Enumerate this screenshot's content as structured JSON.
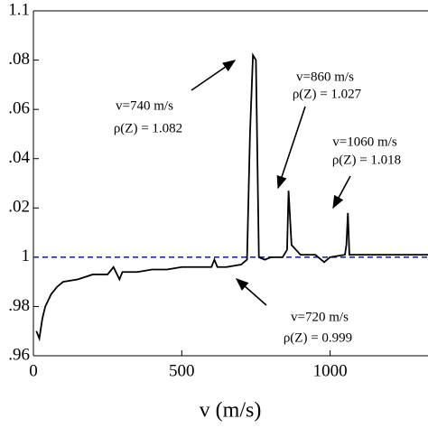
{
  "chart_data": {
    "type": "line",
    "xlabel": "v (m/s)",
    "x": [
      10,
      20,
      30,
      40,
      60,
      80,
      100,
      150,
      200,
      250,
      270,
      290,
      300,
      350,
      400,
      450,
      500,
      550,
      600,
      610,
      620,
      650,
      700,
      720,
      730,
      740,
      750,
      760,
      780,
      800,
      840,
      855,
      860,
      870,
      900,
      950,
      980,
      1000,
      1050,
      1055,
      1060,
      1065,
      1100,
      1200,
      1330
    ],
    "series": [
      {
        "color": "#000000",
        "values": [
          0.97,
          0.967,
          0.975,
          0.98,
          0.985,
          0.988,
          0.99,
          0.991,
          0.993,
          0.993,
          0.996,
          0.991,
          0.994,
          0.994,
          0.995,
          0.995,
          0.996,
          0.996,
          0.996,
          0.999,
          0.996,
          0.996,
          0.997,
          0.999,
          1.05,
          1.082,
          1.08,
          1.0,
          0.999,
          1.0,
          1.0,
          1.003,
          1.027,
          1.005,
          1.001,
          1.001,
          0.998,
          1.0,
          1.001,
          1.005,
          1.018,
          1.001,
          1.001,
          1.001,
          1.001
        ]
      }
    ],
    "reference_line": {
      "value": 1,
      "color": "#1f2f9a",
      "style": "dashed"
    },
    "xlim": [
      0,
      1330
    ],
    "ylim": [
      0.96,
      1.1
    ],
    "xticks": [
      0,
      500,
      1000
    ],
    "yticks": [
      {
        "value": 0.96,
        "label": ".96"
      },
      {
        "value": 0.98,
        "label": ".98"
      },
      1,
      {
        "value": 1.02,
        "label": ".02"
      },
      {
        "value": 1.04,
        "label": ".04"
      },
      {
        "value": 1.06,
        "label": ".06"
      },
      {
        "value": 1.08,
        "label": ".08"
      },
      {
        "value": 1.1,
        "label": "1.1"
      }
    ],
    "annotations": [
      {
        "lines": [
          "v=740 m/s",
          "ρ(Z) = 1.082"
        ]
      },
      {
        "lines": [
          "v=860 m/s",
          "ρ(Z) = 1.027"
        ]
      },
      {
        "lines": [
          "v=1060 m/s",
          "ρ(Z) = 1.018"
        ]
      },
      {
        "lines": [
          "v=720 m/s",
          "ρ(Z) = 0.999"
        ]
      }
    ]
  }
}
